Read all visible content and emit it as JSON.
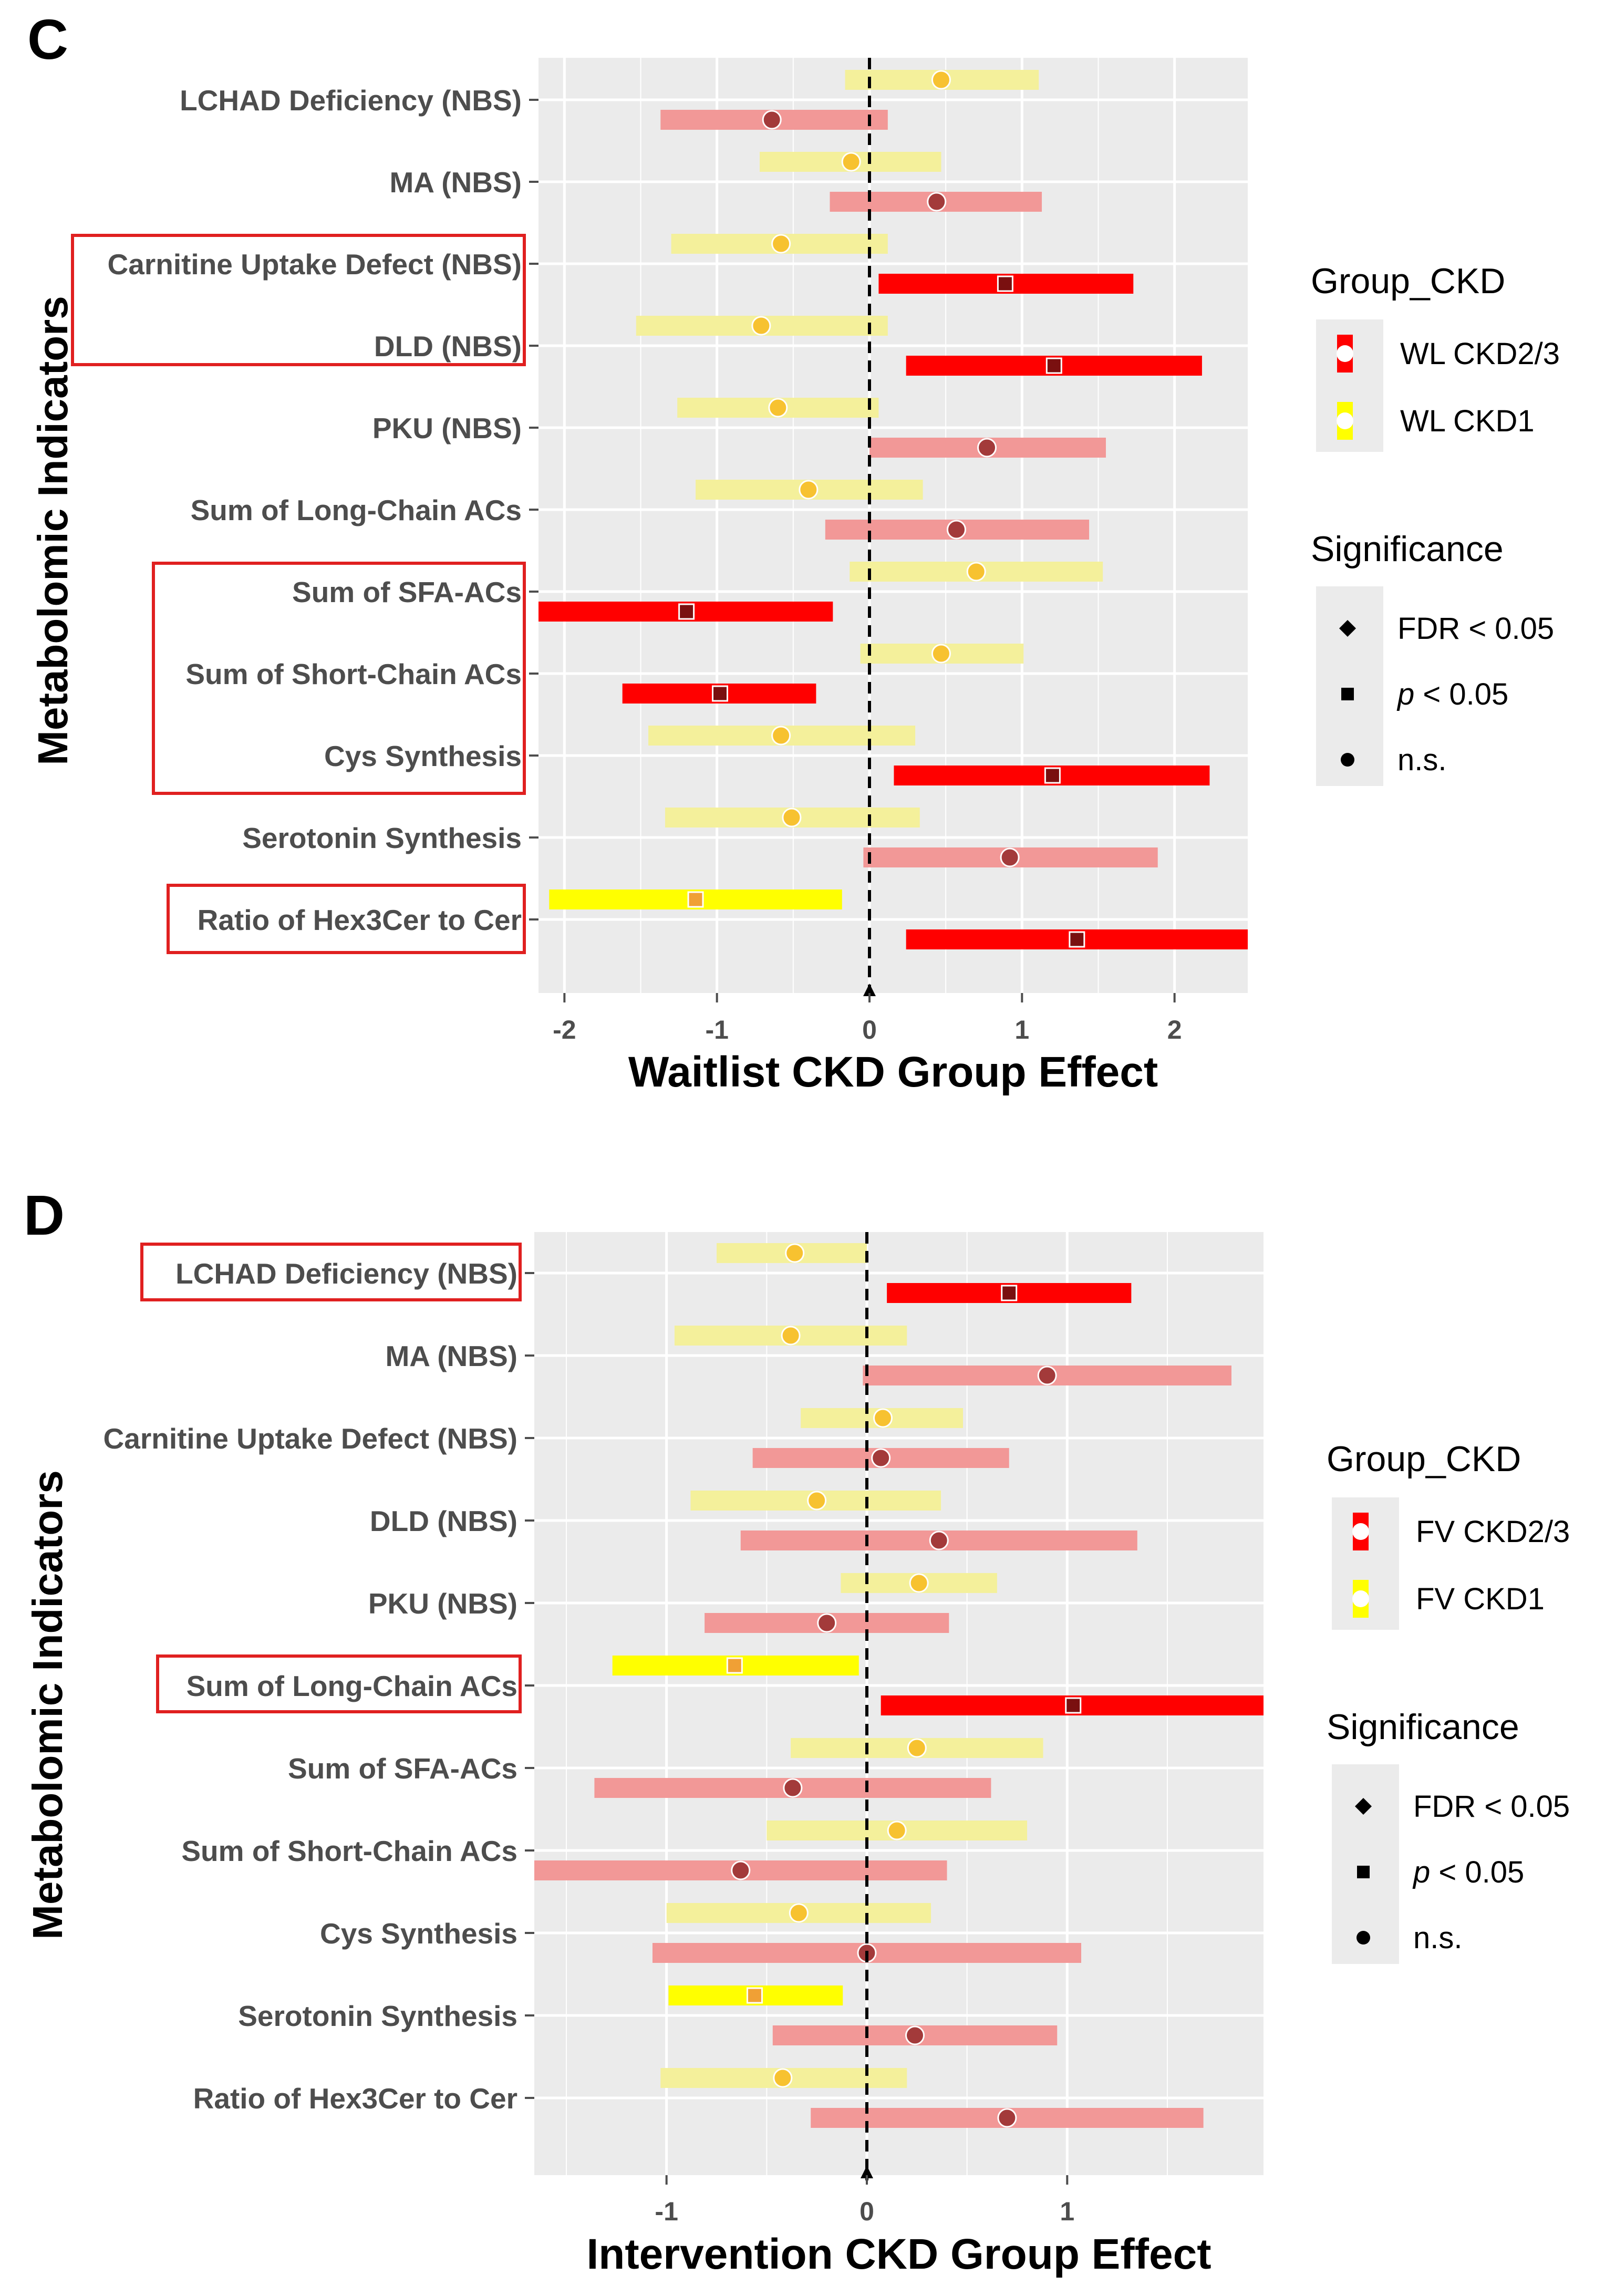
{
  "chart_data": [
    {
      "panel": "C",
      "type": "forest",
      "xlabel": "Waitlist CKD Group Effect",
      "ylabel": "Metabolomic Indicators",
      "xlim": [
        -2.17,
        2.48
      ],
      "xticks": [
        -2,
        -1,
        0,
        1,
        2
      ],
      "xtick_labels": [
        "-2",
        "-1",
        "0",
        "1",
        "2"
      ],
      "categories": [
        "LCHAD Deficiency (NBS)",
        "MA (NBS)",
        "Carnitine Uptake Defect (NBS)",
        "DLD (NBS)",
        "PKU (NBS)",
        "Sum of Long-Chain ACs",
        "Sum of SFA-ACs",
        "Sum of Short-Chain ACs",
        "Cys Synthesis",
        "Serotonin Synthesis",
        "Ratio of Hex3Cer to Cer"
      ],
      "highlighted_groups": [
        [
          "Carnitine Uptake Defect (NBS)",
          "DLD (NBS)"
        ],
        [
          "Sum of SFA-ACs",
          "Sum of Short-Chain ACs",
          "Cys Synthesis"
        ],
        [
          "Ratio of Hex3Cer to Cer"
        ]
      ],
      "legend": {
        "group_title": "Group_CKD",
        "groups": [
          "WL CKD2/3",
          "WL CKD1"
        ],
        "significance_title": "Significance",
        "significance_levels": [
          {
            "shape": "diamond",
            "pre": "FDR",
            "label": " < 0.05"
          },
          {
            "shape": "square",
            "pre": "p",
            "label": " < 0.05"
          },
          {
            "shape": "circle",
            "pre": "",
            "label": "n.s."
          }
        ]
      },
      "series": [
        {
          "name": "WL CKD1",
          "values": [
            {
              "estimate": 0.47,
              "low": -0.16,
              "high": 1.11,
              "sig": "n.s."
            },
            {
              "estimate": -0.12,
              "low": -0.72,
              "high": 0.47,
              "sig": "n.s."
            },
            {
              "estimate": -0.58,
              "low": -1.3,
              "high": 0.12,
              "sig": "n.s."
            },
            {
              "estimate": -0.71,
              "low": -1.53,
              "high": 0.12,
              "sig": "n.s."
            },
            {
              "estimate": -0.6,
              "low": -1.26,
              "high": 0.06,
              "sig": "n.s."
            },
            {
              "estimate": -0.4,
              "low": -1.14,
              "high": 0.35,
              "sig": "n.s."
            },
            {
              "estimate": 0.7,
              "low": -0.13,
              "high": 1.53,
              "sig": "n.s."
            },
            {
              "estimate": 0.47,
              "low": -0.06,
              "high": 1.01,
              "sig": "n.s."
            },
            {
              "estimate": -0.58,
              "low": -1.45,
              "high": 0.3,
              "sig": "n.s."
            },
            {
              "estimate": -0.51,
              "low": -1.34,
              "high": 0.33,
              "sig": "n.s."
            },
            {
              "estimate": -1.14,
              "low": -2.1,
              "high": -0.18,
              "sig": "p < 0.05"
            }
          ]
        },
        {
          "name": "WL CKD2/3",
          "values": [
            {
              "estimate": -0.64,
              "low": -1.37,
              "high": 0.12,
              "sig": "n.s."
            },
            {
              "estimate": 0.44,
              "low": -0.26,
              "high": 1.13,
              "sig": "n.s."
            },
            {
              "estimate": 0.89,
              "low": 0.06,
              "high": 1.73,
              "sig": "p < 0.05"
            },
            {
              "estimate": 1.21,
              "low": 0.24,
              "high": 2.18,
              "sig": "p < 0.05"
            },
            {
              "estimate": 0.77,
              "low": 0.0,
              "high": 1.55,
              "sig": "n.s."
            },
            {
              "estimate": 0.57,
              "low": -0.29,
              "high": 1.44,
              "sig": "n.s."
            },
            {
              "estimate": -1.2,
              "low": -2.17,
              "high": -0.24,
              "sig": "p < 0.05"
            },
            {
              "estimate": -0.98,
              "low": -1.62,
              "high": -0.35,
              "sig": "p < 0.05"
            },
            {
              "estimate": 1.2,
              "low": 0.16,
              "high": 2.23,
              "sig": "p < 0.05"
            },
            {
              "estimate": 0.92,
              "low": -0.04,
              "high": 1.89,
              "sig": "n.s."
            },
            {
              "estimate": 1.36,
              "low": 0.24,
              "high": 2.48,
              "sig": "p < 0.05"
            }
          ]
        }
      ]
    },
    {
      "panel": "D",
      "type": "forest",
      "xlabel": "Intervention CKD Group Effect",
      "ylabel": "Metabolomic Indicators",
      "xlim": [
        -1.66,
        1.98
      ],
      "xticks": [
        -1,
        0,
        1
      ],
      "xtick_labels": [
        "-1",
        "0",
        "1"
      ],
      "categories": [
        "LCHAD Deficiency (NBS)",
        "MA (NBS)",
        "Carnitine Uptake Defect (NBS)",
        "DLD (NBS)",
        "PKU (NBS)",
        "Sum of Long-Chain ACs",
        "Sum of SFA-ACs",
        "Sum of Short-Chain ACs",
        "Cys Synthesis",
        "Serotonin Synthesis",
        "Ratio of Hex3Cer to Cer"
      ],
      "highlighted_groups": [
        [
          "LCHAD Deficiency (NBS)"
        ],
        [
          "Sum of Long-Chain ACs"
        ]
      ],
      "legend": {
        "group_title": "Group_CKD",
        "groups": [
          "FV CKD2/3",
          "FV CKD1"
        ],
        "significance_title": "Significance",
        "significance_levels": [
          {
            "shape": "diamond",
            "pre": "FDR",
            "label": " < 0.05"
          },
          {
            "shape": "square",
            "pre": "p",
            "label": " < 0.05"
          },
          {
            "shape": "circle",
            "pre": "",
            "label": "n.s."
          }
        ]
      },
      "series": [
        {
          "name": "FV CKD1",
          "values": [
            {
              "estimate": -0.36,
              "low": -0.75,
              "high": 0.0,
              "sig": "n.s."
            },
            {
              "estimate": -0.38,
              "low": -0.96,
              "high": 0.2,
              "sig": "n.s."
            },
            {
              "estimate": 0.08,
              "low": -0.33,
              "high": 0.48,
              "sig": "n.s."
            },
            {
              "estimate": -0.25,
              "low": -0.88,
              "high": 0.37,
              "sig": "n.s."
            },
            {
              "estimate": 0.26,
              "low": -0.13,
              "high": 0.65,
              "sig": "n.s."
            },
            {
              "estimate": -0.66,
              "low": -1.27,
              "high": -0.04,
              "sig": "p < 0.05"
            },
            {
              "estimate": 0.25,
              "low": -0.38,
              "high": 0.88,
              "sig": "n.s."
            },
            {
              "estimate": 0.15,
              "low": -0.5,
              "high": 0.8,
              "sig": "n.s."
            },
            {
              "estimate": -0.34,
              "low": -1.0,
              "high": 0.32,
              "sig": "n.s."
            },
            {
              "estimate": -0.56,
              "low": -0.99,
              "high": -0.12,
              "sig": "p < 0.05"
            },
            {
              "estimate": -0.42,
              "low": -1.03,
              "high": 0.2,
              "sig": "n.s."
            }
          ]
        },
        {
          "name": "FV CKD2/3",
          "values": [
            {
              "estimate": 0.71,
              "low": 0.1,
              "high": 1.32,
              "sig": "p < 0.05"
            },
            {
              "estimate": 0.9,
              "low": -0.02,
              "high": 1.82,
              "sig": "n.s."
            },
            {
              "estimate": 0.07,
              "low": -0.57,
              "high": 0.71,
              "sig": "n.s."
            },
            {
              "estimate": 0.36,
              "low": -0.63,
              "high": 1.35,
              "sig": "n.s."
            },
            {
              "estimate": -0.2,
              "low": -0.81,
              "high": 0.41,
              "sig": "n.s."
            },
            {
              "estimate": 1.03,
              "low": 0.07,
              "high": 1.98,
              "sig": "p < 0.05"
            },
            {
              "estimate": -0.37,
              "low": -1.36,
              "high": 0.62,
              "sig": "n.s."
            },
            {
              "estimate": -0.63,
              "low": -1.66,
              "high": 0.4,
              "sig": "n.s."
            },
            {
              "estimate": 0.0,
              "low": -1.07,
              "high": 1.07,
              "sig": "n.s."
            },
            {
              "estimate": 0.24,
              "low": -0.47,
              "high": 0.95,
              "sig": "n.s."
            },
            {
              "estimate": 0.7,
              "low": -0.28,
              "high": 1.68,
              "sig": "n.s."
            }
          ]
        }
      ]
    }
  ],
  "colors": {
    "panel_bg": "#ebebeb",
    "grid": "#ffffff",
    "ckd1_sig_bar": "#ffff00",
    "ckd1_ns_bar": "#f4f09b",
    "ckd1_marker": "#f7c230",
    "ckd1_sig_marker": "#f0a035",
    "ckd23_sig_bar": "#ff0000",
    "ckd23_ns_bar": "#f29897",
    "ckd23_marker": "#a33a3a",
    "ckd23_sig_marker": "#7a1010",
    "highlight_box": "#e02020"
  }
}
